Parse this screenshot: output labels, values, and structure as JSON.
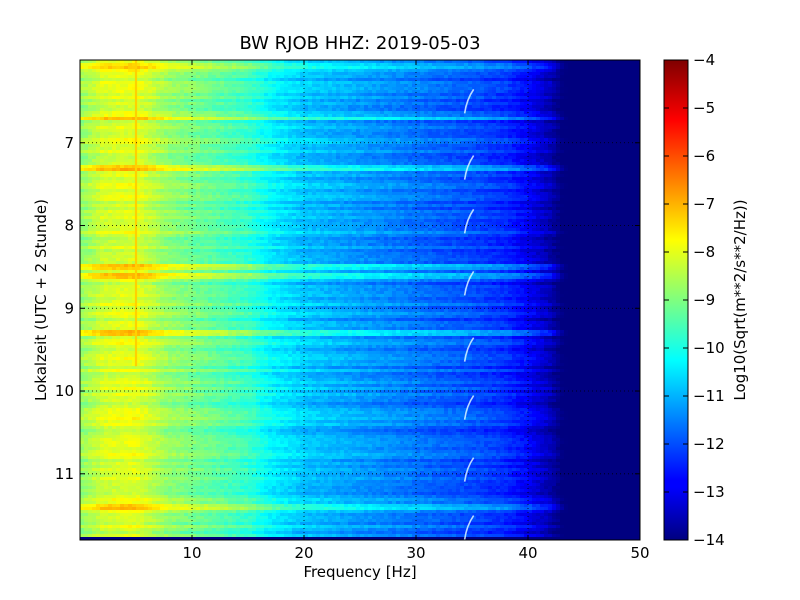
{
  "chart_data": {
    "type": "heatmap",
    "title": "BW RJOB HHZ: 2019-05-03",
    "xlabel": "Frequency [Hz]",
    "ylabel": "Lokalzeit (UTC + 2 Stunde)",
    "xlim": [
      0,
      50
    ],
    "ylim": [
      11.8,
      6.0
    ],
    "x_ticks": [
      10,
      20,
      30,
      40,
      50
    ],
    "y_ticks": [
      7,
      8,
      9,
      10,
      11
    ],
    "grid": true,
    "colormap": "jet",
    "colorbar": {
      "label": "Log10(Sqrt(m**2/s**2/Hz))",
      "range": [
        -14,
        -4
      ],
      "ticks": [
        -4,
        -5,
        -6,
        -7,
        -8,
        -9,
        -10,
        -11,
        -12,
        -13,
        -14
      ]
    },
    "profile": {
      "frequency_hz": [
        0,
        2,
        5,
        8,
        12,
        15,
        17,
        20,
        25,
        30,
        35,
        38,
        40,
        42,
        43,
        45,
        50
      ],
      "log10_value": [
        -8.8,
        -8.2,
        -8.0,
        -8.8,
        -9.3,
        -9.7,
        -10.3,
        -10.8,
        -11.2,
        -11.6,
        -12.0,
        -12.3,
        -12.8,
        -13.5,
        -14.0,
        -14.0,
        -14.0
      ]
    },
    "features": [
      {
        "type": "narrowband-line",
        "frequency_hz": 5,
        "time_start": 6.0,
        "time_end": 9.7,
        "log10_value": -7.3
      },
      {
        "type": "broadband-bursts",
        "times": [
          6.07,
          6.7,
          7.3,
          8.5,
          8.6,
          9.3,
          11.4
        ],
        "log10_boost": 0.8
      },
      {
        "type": "tonal-marks",
        "frequency_hz": 34.7,
        "times": [
          6.5,
          7.3,
          7.95,
          8.7,
          9.5,
          10.2,
          10.95,
          11.65
        ]
      },
      {
        "type": "data-gap",
        "time_start": 11.75,
        "time_end": 11.8,
        "log10_value": -14.0
      }
    ]
  }
}
